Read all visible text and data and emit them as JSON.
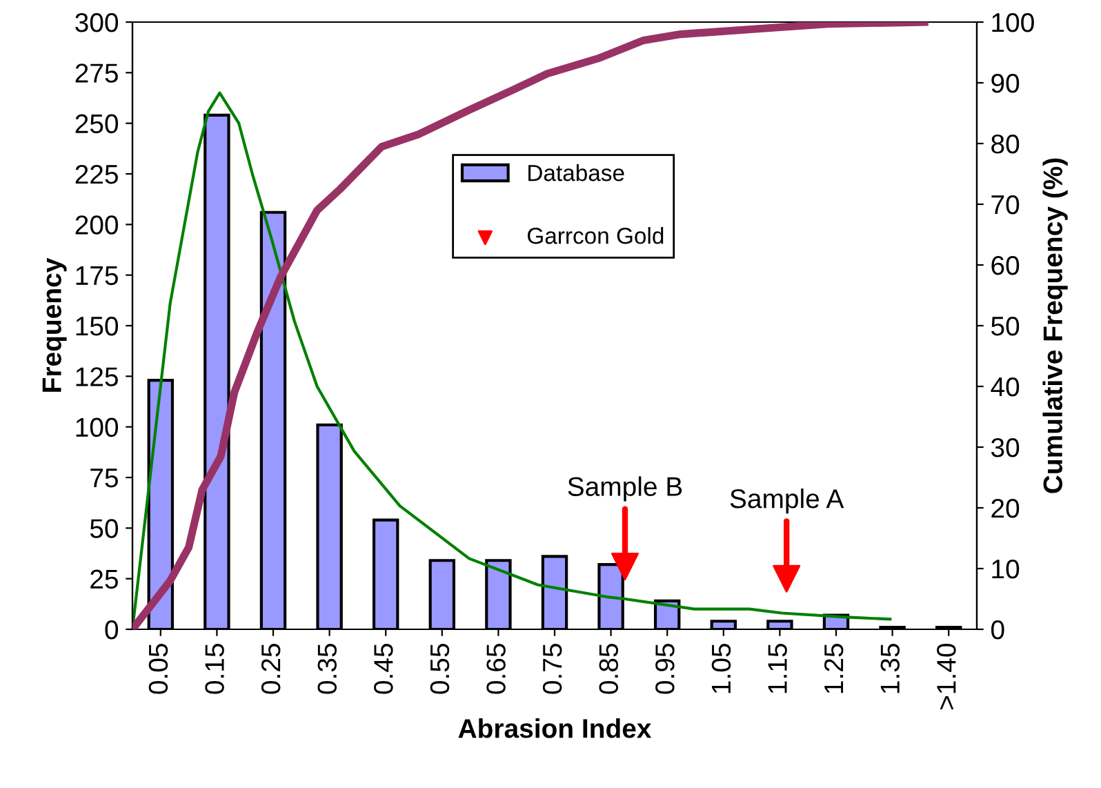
{
  "chart_data": {
    "type": "bar",
    "xlabel": "Abrasion Index",
    "ylabel": "Frequency",
    "y2label": "Cumulative Frequency (%)",
    "x": [
      0.05,
      0.15,
      0.25,
      0.35,
      0.45,
      0.55,
      0.65,
      0.75,
      0.85,
      0.95,
      1.05,
      1.15,
      1.25,
      1.35,
      1.45
    ],
    "xlim": [
      0,
      1.5
    ],
    "xticks": [
      0.05,
      0.15,
      0.25,
      0.35,
      0.45,
      0.55,
      0.65,
      0.75,
      0.85,
      0.95,
      1.05,
      1.15,
      1.25,
      1.35,
      {
        "value": 1.45,
        "label": ">1.40"
      }
    ],
    "ylim": [
      0,
      300
    ],
    "yticks": [
      0,
      25,
      50,
      75,
      100,
      125,
      150,
      175,
      200,
      225,
      250,
      275,
      300
    ],
    "y2lim": [
      0,
      100
    ],
    "y2ticks": [
      0,
      10,
      20,
      30,
      40,
      50,
      60,
      70,
      80,
      90,
      100
    ],
    "grid": false,
    "legend": "top",
    "series": [
      {
        "name": "Database",
        "color": "#9999ff",
        "values": [
          123,
          254,
          206,
          101,
          54,
          34,
          34,
          36,
          32,
          14,
          4,
          4,
          7,
          1,
          1
        ]
      },
      {
        "type": "line",
        "color": "#008000",
        "x": [
          0,
          0.067,
          0.116,
          0.135,
          0.155,
          0.189,
          0.214,
          0.247,
          0.288,
          0.328,
          0.394,
          0.475,
          0.598,
          0.72,
          0.843,
          0.875,
          0.998,
          1.096,
          1.154,
          1.268,
          1.346
        ],
        "values": [
          0,
          161,
          236,
          256,
          265,
          250,
          224,
          193,
          152,
          120,
          88,
          61,
          35,
          22,
          16,
          15,
          10,
          10,
          8,
          6,
          5
        ]
      },
      {
        "type": "line",
        "axis": "y2",
        "color": "#993366",
        "x": [
          0,
          0.067,
          0.1,
          0.124,
          0.157,
          0.181,
          0.222,
          0.263,
          0.328,
          0.369,
          0.443,
          0.508,
          0.598,
          0.68,
          0.737,
          0.827,
          0.908,
          0.974,
          1.129,
          1.235,
          1.407
        ],
        "values": [
          0,
          8,
          13.5,
          23,
          28.5,
          39,
          49,
          58,
          69,
          72.5,
          79.5,
          81.5,
          85.5,
          89,
          91.5,
          94,
          97,
          98,
          99,
          99.7,
          100
        ]
      },
      {
        "name": "Garrcon Gold",
        "type": "scatter",
        "marker": "triangle",
        "color": "#ff0000",
        "x": [
          0.875,
          1.162
        ],
        "values": [
          31,
          25
        ]
      }
    ],
    "annotations": [
      {
        "text": "Sample B",
        "x": 0.875,
        "y": 31
      },
      {
        "text": "Sample A",
        "x": 1.162,
        "y": 25
      }
    ]
  }
}
